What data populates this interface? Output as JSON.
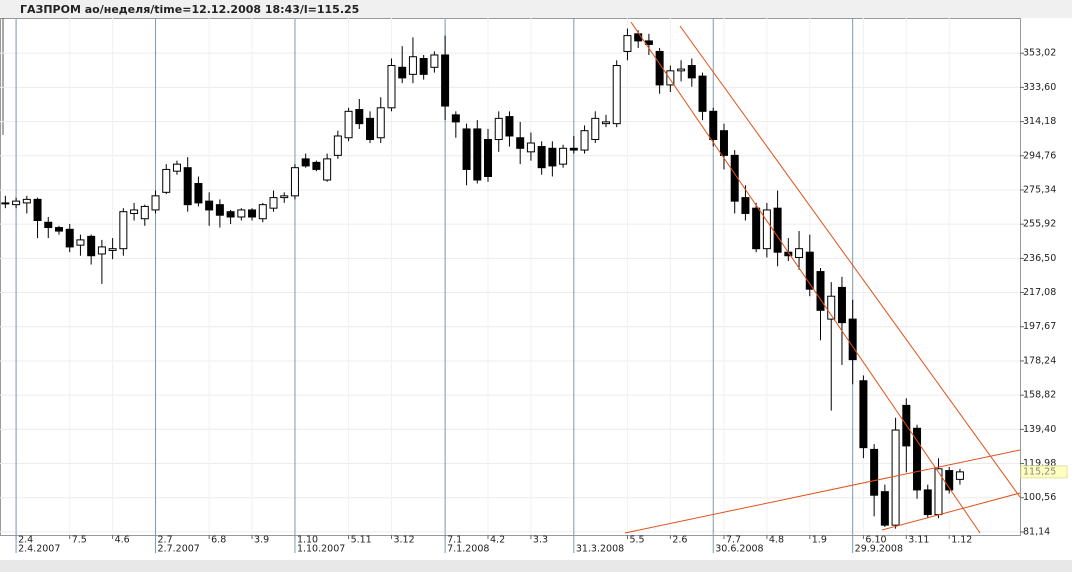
{
  "chart_data": {
    "type": "candlestick",
    "title": "ГАЗПРОМ ао/неделя/time=12.12.2008 18:43/l=115.25",
    "open": [
      268,
      267,
      268,
      270,
      257,
      254,
      253,
      244,
      249,
      239,
      241,
      242,
      262,
      259,
      264,
      274,
      286,
      288,
      279,
      269,
      267,
      263,
      260,
      264,
      259,
      265,
      271,
      272,
      293,
      291,
      281,
      295,
      305,
      321,
      316,
      305,
      322,
      345,
      341,
      350,
      345,
      352,
      318,
      310,
      310,
      304,
      304,
      317,
      305,
      297,
      300,
      299,
      290,
      299,
      298,
      304,
      313,
      313,
      354,
      364,
      360,
      354,
      335,
      343,
      346,
      340,
      320,
      309,
      295,
      271,
      265,
      242,
      265,
      240,
      237,
      240,
      229,
      202,
      220,
      202,
      167,
      128,
      104,
      85,
      153,
      140,
      105,
      91,
      116,
      111
    ],
    "high": [
      272,
      271,
      272,
      271,
      260,
      255,
      256,
      250,
      250,
      247,
      248,
      265,
      268,
      267,
      275,
      290,
      292,
      294,
      283,
      274,
      270,
      264,
      265,
      265,
      268,
      275,
      274,
      290,
      296,
      292,
      296,
      309,
      322,
      327,
      320,
      328,
      350,
      357,
      362,
      352,
      354,
      363,
      320,
      313,
      315,
      310,
      320,
      320,
      314,
      308,
      303,
      303,
      301,
      306,
      312,
      320,
      318,
      349,
      367,
      366,
      364,
      356,
      346,
      349,
      350,
      342,
      322,
      313,
      298,
      278,
      268,
      268,
      275,
      248,
      252,
      250,
      231,
      223,
      226,
      213,
      170,
      131,
      108,
      146,
      157,
      142,
      108,
      123,
      118,
      117
    ],
    "low": [
      265,
      265,
      262,
      248,
      248,
      250,
      240,
      238,
      233,
      222,
      236,
      238,
      258,
      255,
      262,
      273,
      284,
      263,
      266,
      255,
      254,
      256,
      258,
      258,
      257,
      263,
      268,
      270,
      288,
      286,
      280,
      293,
      303,
      310,
      302,
      302,
      320,
      336,
      336,
      338,
      342,
      315,
      305,
      278,
      279,
      280,
      297,
      300,
      290,
      292,
      284,
      283,
      288,
      296,
      296,
      302,
      311,
      311,
      349,
      356,
      352,
      330,
      331,
      337,
      334,
      315,
      300,
      287,
      262,
      258,
      240,
      237,
      232,
      235,
      230,
      215,
      190,
      150,
      176,
      165,
      123,
      90,
      84,
      83,
      115,
      100,
      89,
      89,
      103,
      108
    ],
    "close": [
      268,
      269,
      270,
      258,
      254,
      252,
      243,
      247,
      238,
      243,
      242,
      263,
      264,
      266,
      272,
      287,
      290,
      267,
      268,
      264,
      261,
      260,
      264,
      260,
      267,
      271,
      272,
      288,
      289,
      287,
      293,
      306,
      320,
      313,
      304,
      322,
      346,
      339,
      351,
      341,
      352,
      323,
      314,
      287,
      281,
      283,
      316,
      306,
      299,
      302,
      288,
      289,
      299,
      298,
      309,
      316,
      314,
      346,
      363,
      360,
      358,
      335,
      343,
      344,
      339,
      320,
      304,
      295,
      269,
      262,
      242,
      264,
      240,
      238,
      242,
      219,
      207,
      215,
      200,
      179,
      129,
      102,
      85,
      139,
      130,
      105,
      91,
      117,
      105,
      115.25
    ],
    "up_color": "#ffffff",
    "down_color": "#000000",
    "xlim": [
      -0.5,
      94.6
    ],
    "xticks": [
      {
        "value": 1,
        "label": "2.4"
      },
      {
        "value": 6,
        "label": "7.5"
      },
      {
        "value": 10,
        "label": "4.6"
      },
      {
        "value": 14,
        "label": "2.7"
      },
      {
        "value": 19,
        "label": "6.8"
      },
      {
        "value": 23,
        "label": "3.9"
      },
      {
        "value": 27,
        "label": "1.10"
      },
      {
        "value": 32,
        "label": "5.11"
      },
      {
        "value": 36,
        "label": "3.12"
      },
      {
        "value": 41,
        "label": "7.1"
      },
      {
        "value": 45,
        "label": "4.2"
      },
      {
        "value": 49,
        "label": "3.3"
      },
      {
        "value": 58,
        "label": "5.5"
      },
      {
        "value": 62,
        "label": "2.6"
      },
      {
        "value": 67,
        "label": "7.7"
      },
      {
        "value": 71,
        "label": "4.8"
      },
      {
        "value": 75,
        "label": "1.9"
      },
      {
        "value": 80,
        "label": "6.10"
      },
      {
        "value": 84,
        "label": "3.11"
      },
      {
        "value": 88,
        "label": "1.12"
      }
    ],
    "xticks_major": [
      {
        "value": 1,
        "label": "2.4.2007"
      },
      {
        "value": 14,
        "label": "2.7.2007"
      },
      {
        "value": 27,
        "label": "1.10.2007"
      },
      {
        "value": 41,
        "label": "7.1.2008"
      },
      {
        "value": 53,
        "label": "31.3.2008"
      },
      {
        "value": 66,
        "label": "30.6.2008"
      },
      {
        "value": 79,
        "label": "29.9.2008"
      }
    ],
    "ylim": [
      79.4,
      373
    ],
    "yticks": [
      {
        "value": 81.14,
        "label": "81,14"
      },
      {
        "value": 100.56,
        "label": "100,56"
      },
      {
        "value": 119.98,
        "label": "119,98"
      },
      {
        "value": 139.4,
        "label": "139,40"
      },
      {
        "value": 158.82,
        "label": "158,82"
      },
      {
        "value": 178.24,
        "label": "178,24"
      },
      {
        "value": 197.67,
        "label": "197,67"
      },
      {
        "value": 217.08,
        "label": "217,08"
      },
      {
        "value": 236.5,
        "label": "236,50"
      },
      {
        "value": 255.92,
        "label": "255,92"
      },
      {
        "value": 275.34,
        "label": "275,34"
      },
      {
        "value": 294.76,
        "label": "294,76"
      },
      {
        "value": 314.18,
        "label": "314,18"
      },
      {
        "value": 333.6,
        "label": "333,60"
      },
      {
        "value": 353.02,
        "label": "353,02"
      }
    ],
    "last_price": {
      "value": 115.25,
      "label": "115,25"
    },
    "grid": true
  }
}
